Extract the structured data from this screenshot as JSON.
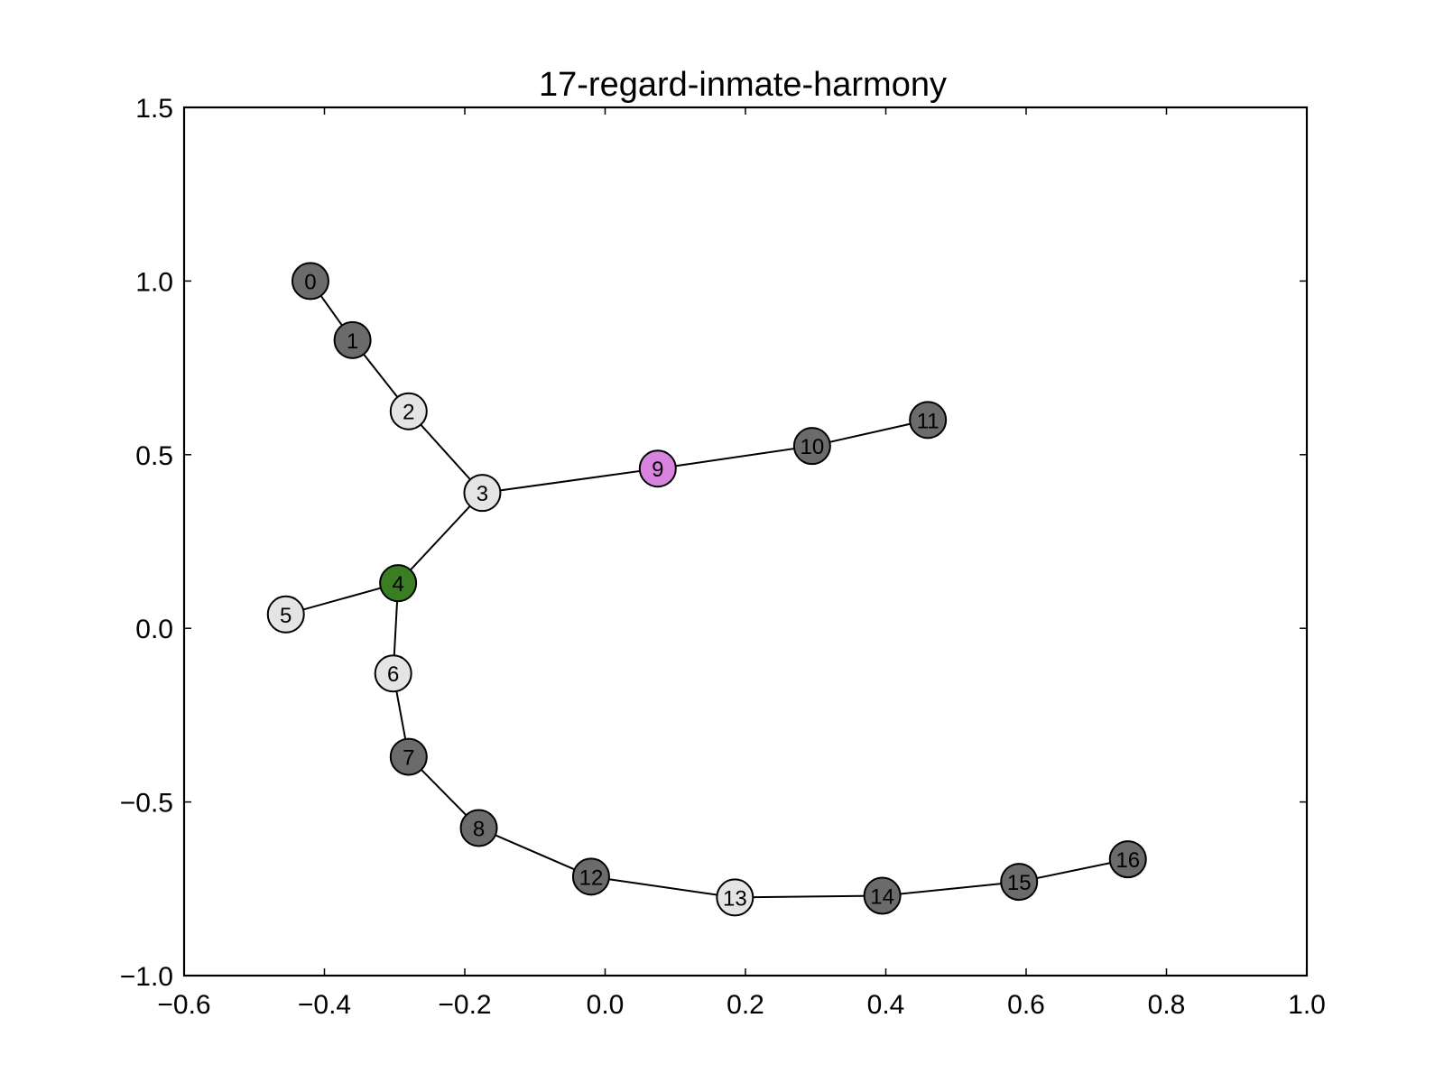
{
  "chart_data": {
    "type": "scatter",
    "title": "17-regard-inmate-harmony",
    "xlabel": "",
    "ylabel": "",
    "xlim": [
      -0.6,
      1.0
    ],
    "ylim": [
      -1.0,
      1.5
    ],
    "xticks": [
      -0.6,
      -0.4,
      -0.2,
      0.0,
      0.2,
      0.4,
      0.6,
      0.8,
      1.0
    ],
    "yticks": [
      -1.0,
      -0.5,
      0.0,
      0.5,
      1.0,
      1.5
    ],
    "xtick_labels": [
      "−0.6",
      "−0.4",
      "−0.2",
      "0.0",
      "0.2",
      "0.4",
      "0.6",
      "0.8",
      "1.0"
    ],
    "ytick_labels": [
      "−1.0",
      "−0.5",
      "0.0",
      "0.5",
      "1.0",
      "1.5"
    ],
    "grid": false,
    "colors": {
      "dark": "#6b6b6b",
      "light": "#e4e4e4",
      "green": "#3a7d22",
      "purple": "#d884df",
      "edge": "#000000"
    },
    "nodes": [
      {
        "id": "0",
        "x": -0.42,
        "y": 1.0,
        "color": "dark"
      },
      {
        "id": "1",
        "x": -0.36,
        "y": 0.83,
        "color": "dark"
      },
      {
        "id": "2",
        "x": -0.28,
        "y": 0.625,
        "color": "light"
      },
      {
        "id": "3",
        "x": -0.175,
        "y": 0.39,
        "color": "light"
      },
      {
        "id": "4",
        "x": -0.295,
        "y": 0.13,
        "color": "green"
      },
      {
        "id": "5",
        "x": -0.455,
        "y": 0.04,
        "color": "light"
      },
      {
        "id": "6",
        "x": -0.302,
        "y": -0.13,
        "color": "light"
      },
      {
        "id": "7",
        "x": -0.28,
        "y": -0.37,
        "color": "dark"
      },
      {
        "id": "8",
        "x": -0.18,
        "y": -0.575,
        "color": "dark"
      },
      {
        "id": "9",
        "x": 0.075,
        "y": 0.46,
        "color": "purple"
      },
      {
        "id": "10",
        "x": 0.295,
        "y": 0.525,
        "color": "dark"
      },
      {
        "id": "11",
        "x": 0.46,
        "y": 0.6,
        "color": "dark"
      },
      {
        "id": "12",
        "x": -0.02,
        "y": -0.715,
        "color": "dark"
      },
      {
        "id": "13",
        "x": 0.185,
        "y": -0.775,
        "color": "light"
      },
      {
        "id": "14",
        "x": 0.395,
        "y": -0.77,
        "color": "dark"
      },
      {
        "id": "15",
        "x": 0.59,
        "y": -0.73,
        "color": "dark"
      },
      {
        "id": "16",
        "x": 0.745,
        "y": -0.665,
        "color": "dark"
      }
    ],
    "edges": [
      [
        "0",
        "1"
      ],
      [
        "1",
        "2"
      ],
      [
        "2",
        "3"
      ],
      [
        "3",
        "4"
      ],
      [
        "4",
        "5"
      ],
      [
        "4",
        "6"
      ],
      [
        "6",
        "7"
      ],
      [
        "7",
        "8"
      ],
      [
        "3",
        "9"
      ],
      [
        "9",
        "10"
      ],
      [
        "10",
        "11"
      ],
      [
        "8",
        "12"
      ],
      [
        "12",
        "13"
      ],
      [
        "13",
        "14"
      ],
      [
        "14",
        "15"
      ],
      [
        "15",
        "16"
      ]
    ]
  }
}
